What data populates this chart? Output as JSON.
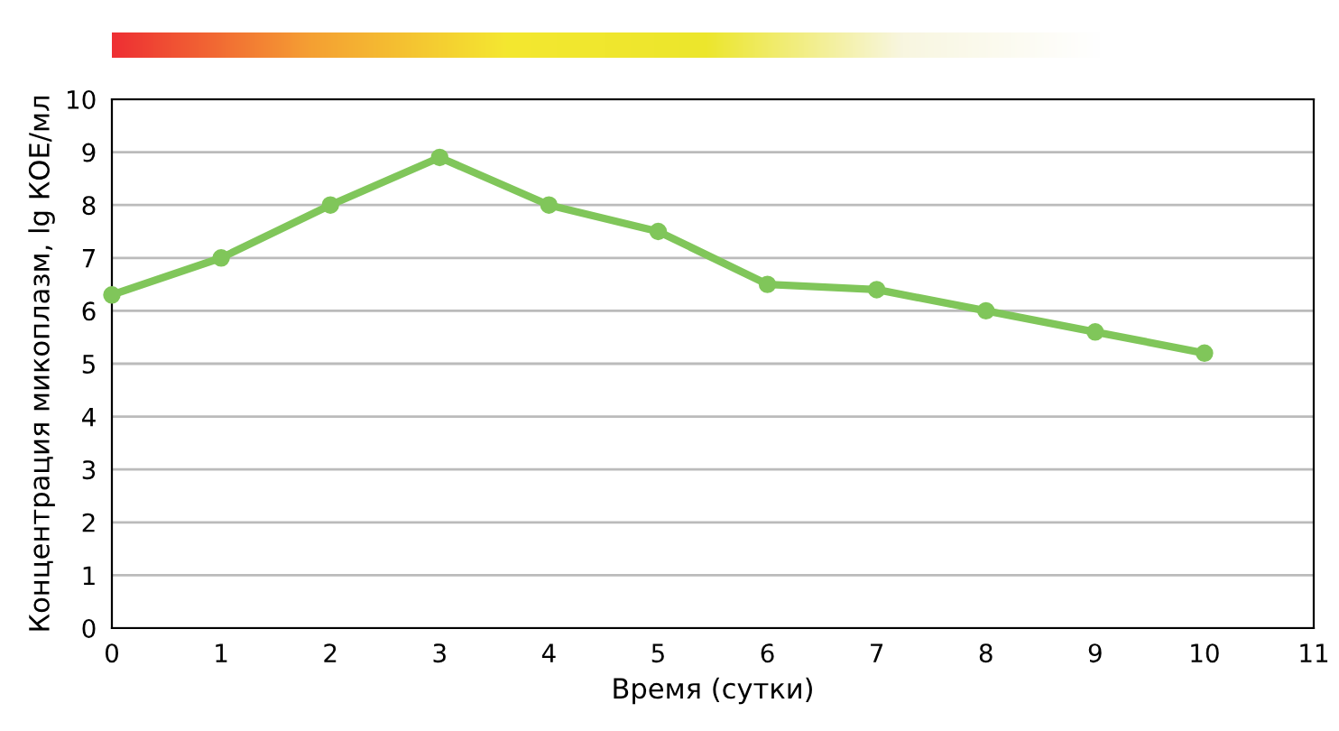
{
  "chart_data": {
    "type": "line",
    "xlabel": "Время (сутки)",
    "ylabel": "Концентрация микоплазм, lg КОЕ/мл",
    "x": [
      0,
      1,
      2,
      3,
      4,
      5,
      6,
      7,
      8,
      9,
      10
    ],
    "series": [
      {
        "color": "#80c65a",
        "values": [
          6.3,
          7,
          8,
          8.9,
          8,
          7.5,
          6.5,
          6.4,
          6,
          5.6,
          5.2
        ]
      }
    ],
    "xlim": [
      0,
      11
    ],
    "xticks": [
      0,
      1,
      2,
      3,
      4,
      5,
      6,
      7,
      8,
      9,
      10,
      11
    ],
    "ylim": [
      0,
      10
    ],
    "yticks": [
      0,
      1,
      2,
      3,
      4,
      5,
      6,
      7,
      8,
      9,
      10
    ],
    "grid": "y",
    "marker": "circle",
    "line_style": "solid"
  }
}
